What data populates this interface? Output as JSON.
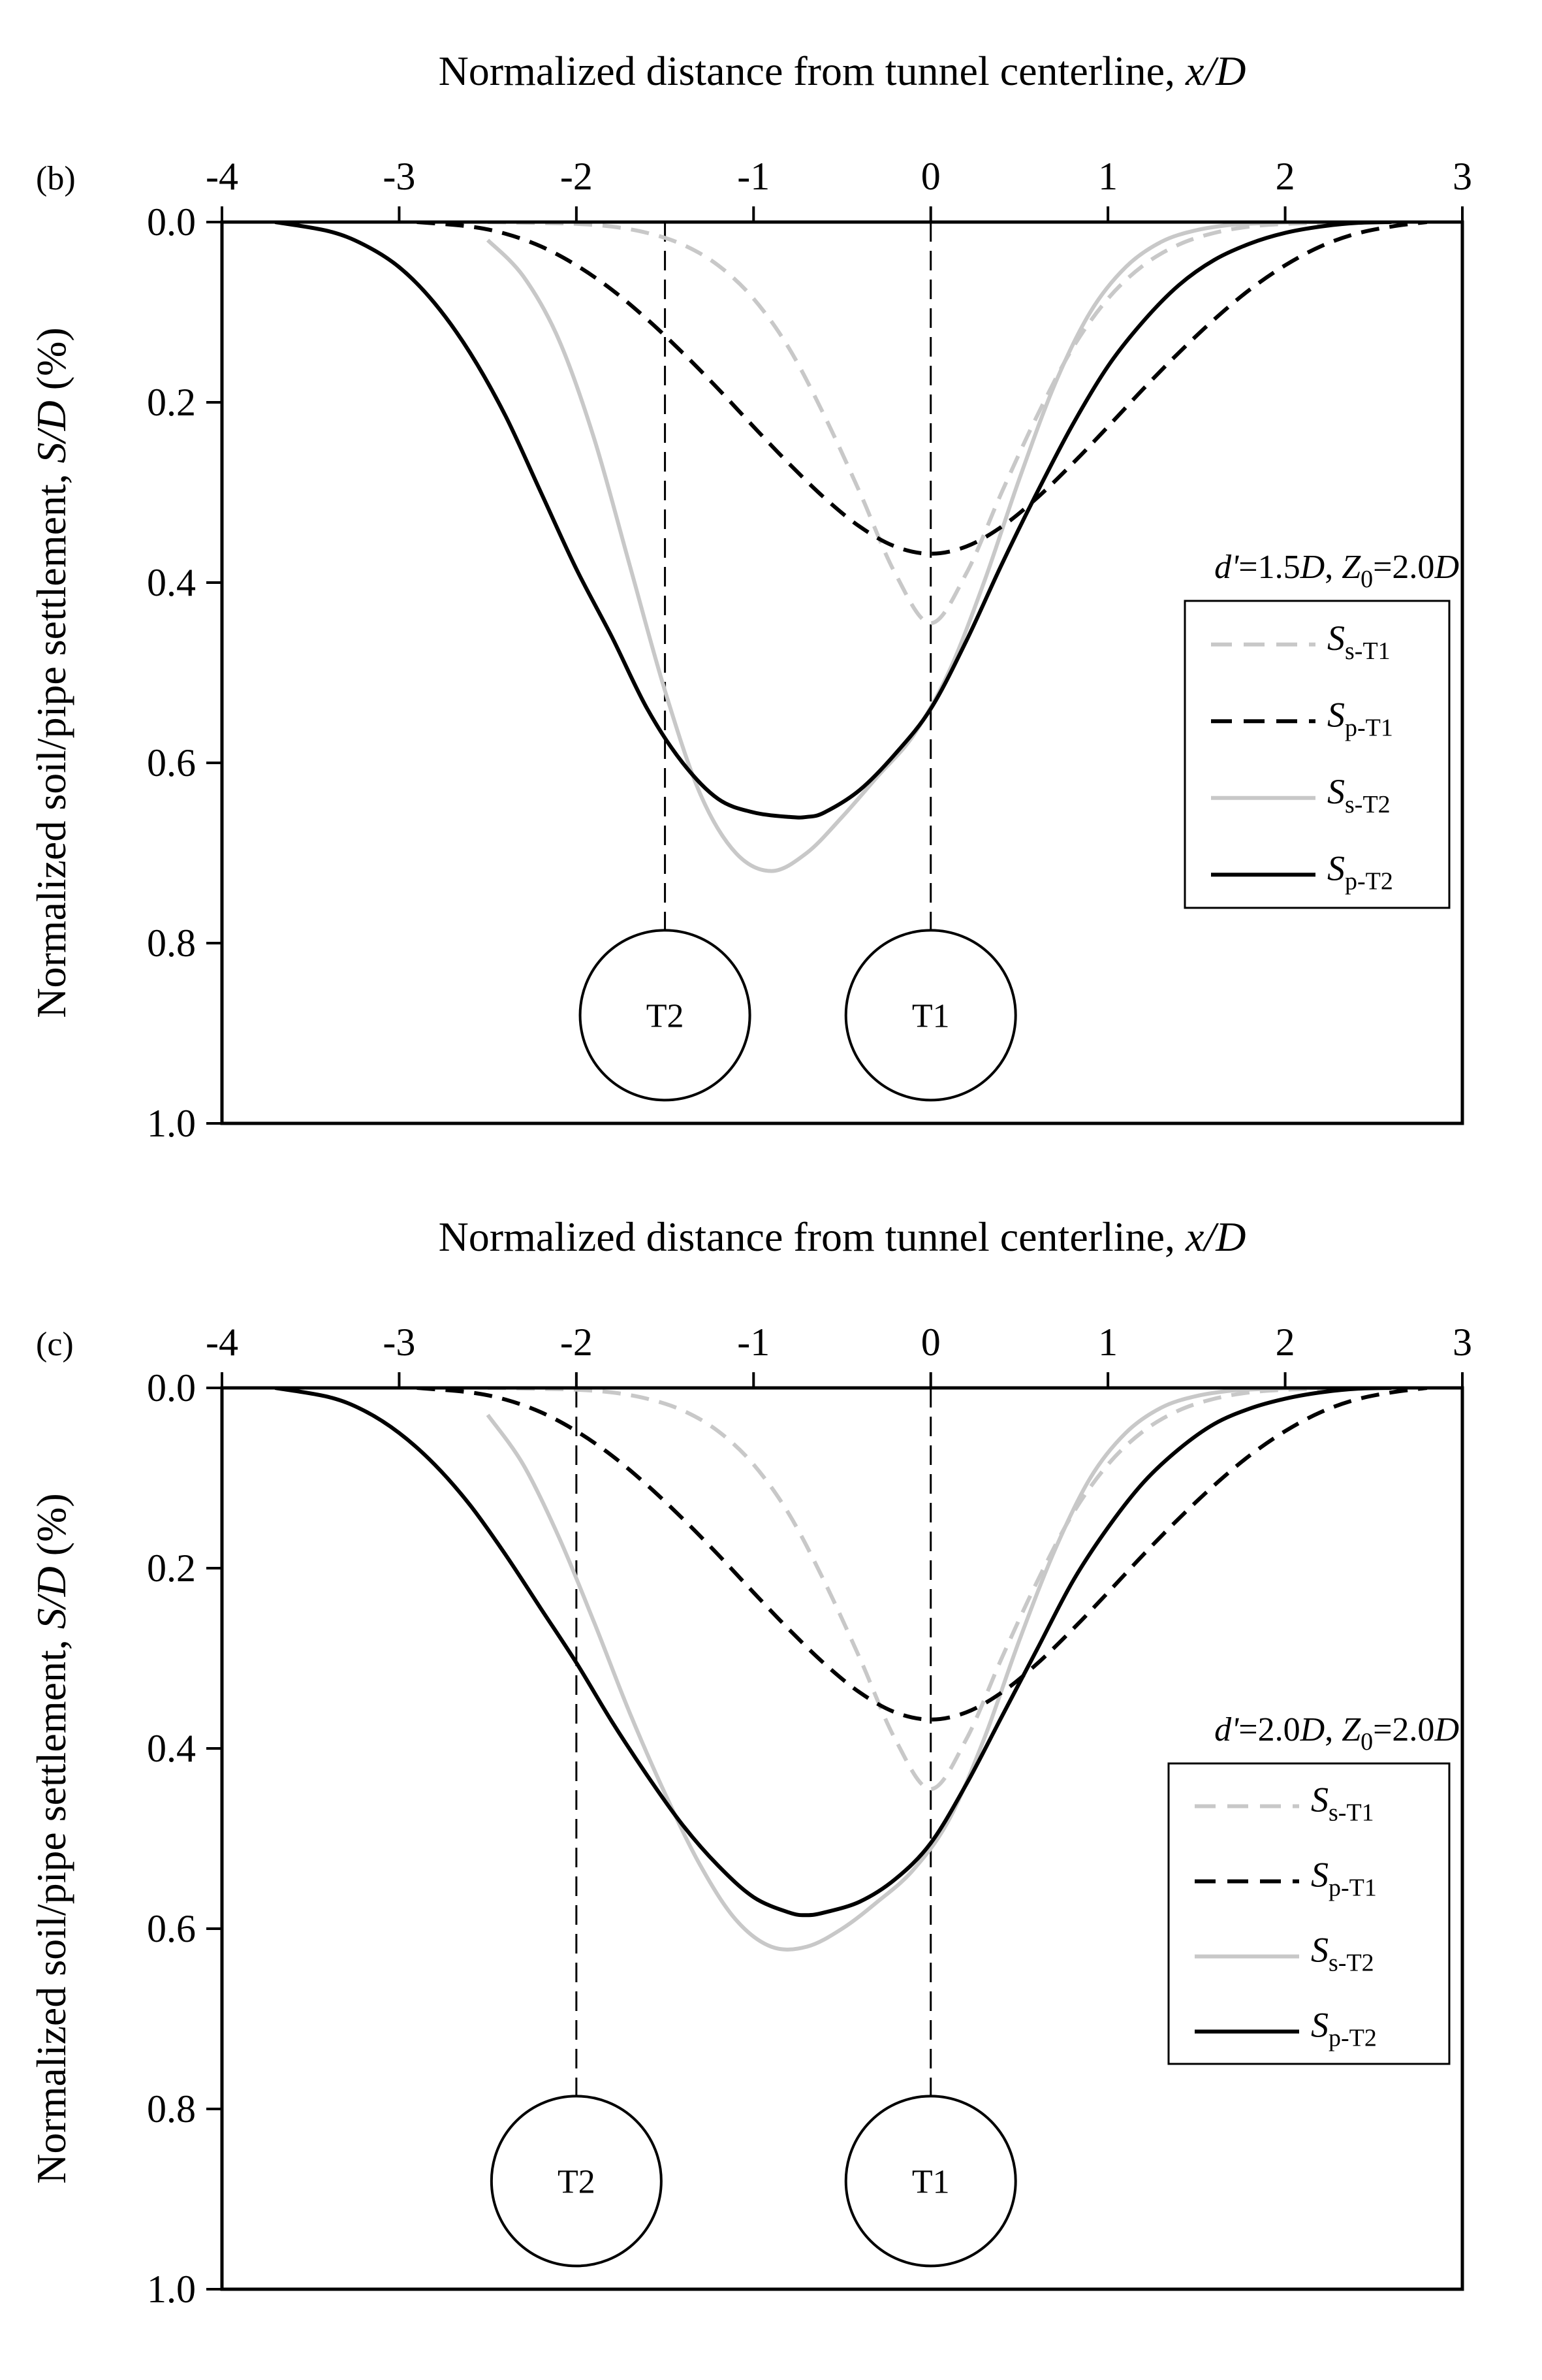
{
  "figure": {
    "series_styles": {
      "Ss-T1": {
        "color": "#c8c8c8",
        "dash": true
      },
      "Sp-T1": {
        "color": "#000000",
        "dash": true
      },
      "Ss-T2": {
        "color": "#c8c8c8",
        "dash": false
      },
      "Sp-T2": {
        "color": "#000000",
        "dash": false
      }
    },
    "legend_entries": [
      {
        "key": "Ss-T1",
        "main": "S",
        "sub": "s-T1"
      },
      {
        "key": "Sp-T1",
        "main": "S",
        "sub": "p-T1"
      },
      {
        "key": "Ss-T2",
        "main": "S",
        "sub": "s-T2"
      },
      {
        "key": "Sp-T2",
        "main": "S",
        "sub": "p-T2"
      }
    ]
  },
  "chart_data": [
    {
      "type": "line",
      "panel_label": "(b)",
      "xlabel_prefix": "Normalized distance from tunnel centerline, ",
      "xlabel_italic": "x/D",
      "ylabel_prefix": "Normalized soil/pipe settlement, ",
      "ylabel_italic": "S/D",
      "ylabel_suffix": " (%)",
      "xlim": [
        -4,
        3
      ],
      "ylim": [
        0,
        1
      ],
      "y_inverted": true,
      "x_axis_position": "top",
      "x_ticks": [
        -4,
        -3,
        -2,
        -1,
        0,
        1,
        2,
        3
      ],
      "x_tick_labels": [
        "-4",
        "-3",
        "-2",
        "-1",
        "0",
        "1",
        "2",
        "3"
      ],
      "y_ticks": [
        0.0,
        0.2,
        0.4,
        0.6,
        0.8,
        1.0
      ],
      "y_tick_labels": [
        "0.0",
        "0.2",
        "0.4",
        "0.6",
        "0.8",
        "1.0"
      ],
      "annotation": {
        "p1": "d'",
        "v1": "=1.5",
        "u1": "D",
        "sep": ", ",
        "p2": "Z",
        "p2sub": "0",
        "v2": "=2.0",
        "u2": "D"
      },
      "tunnels": [
        {
          "label": "T2",
          "x": -1.5,
          "y": 0.88
        },
        {
          "label": "T1",
          "x": 0.0,
          "y": 0.88
        }
      ],
      "series": [
        {
          "name": "Ss-T1",
          "x": [
            -2.5,
            -2.2,
            -2.0,
            -1.8,
            -1.6,
            -1.4,
            -1.2,
            -1.0,
            -0.8,
            -0.6,
            -0.4,
            -0.2,
            0.0,
            0.2,
            0.4,
            0.6,
            0.8,
            1.0,
            1.2,
            1.4,
            1.6,
            1.8,
            2.0,
            2.2,
            2.4,
            2.5
          ],
          "y": [
            0.0,
            0.001,
            0.002,
            0.005,
            0.012,
            0.025,
            0.048,
            0.085,
            0.14,
            0.215,
            0.3,
            0.39,
            0.445,
            0.39,
            0.3,
            0.215,
            0.14,
            0.085,
            0.048,
            0.025,
            0.012,
            0.005,
            0.002,
            0.001,
            0.0,
            0.0
          ]
        },
        {
          "name": "Sp-T1",
          "x": [
            -2.9,
            -2.6,
            -2.4,
            -2.2,
            -2.0,
            -1.8,
            -1.6,
            -1.4,
            -1.2,
            -1.0,
            -0.8,
            -0.6,
            -0.4,
            -0.2,
            0.0,
            0.2,
            0.4,
            0.6,
            0.8,
            1.0,
            1.2,
            1.4,
            1.6,
            1.8,
            2.0,
            2.2,
            2.4,
            2.6,
            2.8
          ],
          "y": [
            0.0,
            0.005,
            0.013,
            0.027,
            0.048,
            0.075,
            0.108,
            0.145,
            0.185,
            0.227,
            0.268,
            0.306,
            0.338,
            0.36,
            0.368,
            0.36,
            0.338,
            0.306,
            0.268,
            0.227,
            0.185,
            0.145,
            0.108,
            0.075,
            0.048,
            0.027,
            0.013,
            0.005,
            0.0
          ]
        },
        {
          "name": "Ss-T2",
          "x": [
            -2.5,
            -2.3,
            -2.1,
            -1.9,
            -1.7,
            -1.5,
            -1.3,
            -1.1,
            -0.9,
            -0.7,
            -0.5,
            -0.3,
            -0.1,
            0.1,
            0.3,
            0.5,
            0.7,
            0.9,
            1.1,
            1.3,
            1.5,
            1.7,
            1.9,
            2.1,
            2.3,
            2.5
          ],
          "y": [
            0.02,
            0.06,
            0.13,
            0.24,
            0.38,
            0.52,
            0.635,
            0.7,
            0.72,
            0.7,
            0.66,
            0.615,
            0.57,
            0.5,
            0.4,
            0.285,
            0.18,
            0.1,
            0.05,
            0.022,
            0.009,
            0.003,
            0.001,
            0.0,
            0.0,
            0.0
          ]
        },
        {
          "name": "Sp-T2",
          "x": [
            -3.7,
            -3.4,
            -3.2,
            -3.0,
            -2.8,
            -2.6,
            -2.4,
            -2.2,
            -2.0,
            -1.8,
            -1.6,
            -1.4,
            -1.2,
            -1.0,
            -0.8,
            -0.7,
            -0.6,
            -0.4,
            -0.2,
            0.0,
            0.2,
            0.4,
            0.6,
            0.8,
            1.0,
            1.2,
            1.4,
            1.6,
            1.8,
            2.0,
            2.2,
            2.4,
            2.6
          ],
          "y": [
            0.0,
            0.01,
            0.025,
            0.05,
            0.09,
            0.145,
            0.215,
            0.3,
            0.385,
            0.46,
            0.54,
            0.6,
            0.64,
            0.655,
            0.66,
            0.66,
            0.655,
            0.63,
            0.59,
            0.54,
            0.465,
            0.38,
            0.3,
            0.225,
            0.16,
            0.11,
            0.07,
            0.042,
            0.024,
            0.012,
            0.005,
            0.001,
            0.0
          ]
        }
      ]
    },
    {
      "type": "line",
      "panel_label": "(c)",
      "xlabel_prefix": "Normalized distance from tunnel centerline, ",
      "xlabel_italic": "x/D",
      "ylabel_prefix": "Normalized soil/pipe settlement, ",
      "ylabel_italic": "S/D",
      "ylabel_suffix": " (%)",
      "xlim": [
        -4,
        3
      ],
      "ylim": [
        0,
        1
      ],
      "y_inverted": true,
      "x_axis_position": "top",
      "x_ticks": [
        -4,
        -3,
        -2,
        -1,
        0,
        1,
        2,
        3
      ],
      "x_tick_labels": [
        "-4",
        "-3",
        "-2",
        "-1",
        "0",
        "1",
        "2",
        "3"
      ],
      "y_ticks": [
        0.0,
        0.2,
        0.4,
        0.6,
        0.8,
        1.0
      ],
      "y_tick_labels": [
        "0.0",
        "0.2",
        "0.4",
        "0.6",
        "0.8",
        "1.0"
      ],
      "annotation": {
        "p1": "d'",
        "v1": "=2.0",
        "u1": "D",
        "sep": ", ",
        "p2": "Z",
        "p2sub": "0",
        "v2": "=2.0",
        "u2": "D"
      },
      "tunnels": [
        {
          "label": "T2",
          "x": -2.0,
          "y": 0.88
        },
        {
          "label": "T1",
          "x": 0.0,
          "y": 0.88
        }
      ],
      "series": [
        {
          "name": "Ss-T1",
          "x": [
            -2.5,
            -2.2,
            -2.0,
            -1.8,
            -1.6,
            -1.4,
            -1.2,
            -1.0,
            -0.8,
            -0.6,
            -0.4,
            -0.2,
            0.0,
            0.2,
            0.4,
            0.6,
            0.8,
            1.0,
            1.2,
            1.4,
            1.6,
            1.8,
            2.0,
            2.2,
            2.4,
            2.5
          ],
          "y": [
            0.0,
            0.001,
            0.002,
            0.005,
            0.012,
            0.025,
            0.048,
            0.085,
            0.14,
            0.215,
            0.3,
            0.39,
            0.445,
            0.39,
            0.3,
            0.215,
            0.14,
            0.085,
            0.048,
            0.025,
            0.012,
            0.005,
            0.002,
            0.001,
            0.0,
            0.0
          ]
        },
        {
          "name": "Sp-T1",
          "x": [
            -2.9,
            -2.6,
            -2.4,
            -2.2,
            -2.0,
            -1.8,
            -1.6,
            -1.4,
            -1.2,
            -1.0,
            -0.8,
            -0.6,
            -0.4,
            -0.2,
            0.0,
            0.2,
            0.4,
            0.6,
            0.8,
            1.0,
            1.2,
            1.4,
            1.6,
            1.8,
            2.0,
            2.2,
            2.4,
            2.6,
            2.8
          ],
          "y": [
            0.0,
            0.005,
            0.013,
            0.027,
            0.048,
            0.075,
            0.108,
            0.145,
            0.185,
            0.227,
            0.268,
            0.306,
            0.338,
            0.36,
            0.368,
            0.36,
            0.338,
            0.306,
            0.268,
            0.227,
            0.185,
            0.145,
            0.108,
            0.075,
            0.048,
            0.027,
            0.013,
            0.005,
            0.0
          ]
        },
        {
          "name": "Ss-T2",
          "x": [
            -2.5,
            -2.3,
            -2.1,
            -1.9,
            -1.7,
            -1.5,
            -1.3,
            -1.1,
            -0.9,
            -0.7,
            -0.5,
            -0.3,
            -0.1,
            0.1,
            0.3,
            0.5,
            0.7,
            0.9,
            1.1,
            1.3,
            1.5,
            1.7,
            1.9,
            2.1,
            2.3,
            2.5
          ],
          "y": [
            0.03,
            0.085,
            0.165,
            0.26,
            0.36,
            0.45,
            0.53,
            0.59,
            0.62,
            0.62,
            0.6,
            0.57,
            0.535,
            0.48,
            0.39,
            0.28,
            0.18,
            0.1,
            0.05,
            0.022,
            0.009,
            0.003,
            0.001,
            0.0,
            0.0,
            0.0
          ]
        },
        {
          "name": "Sp-T2",
          "x": [
            -3.7,
            -3.4,
            -3.2,
            -3.0,
            -2.8,
            -2.6,
            -2.4,
            -2.2,
            -2.0,
            -1.8,
            -1.6,
            -1.4,
            -1.2,
            -1.0,
            -0.8,
            -0.7,
            -0.6,
            -0.4,
            -0.2,
            0.0,
            0.2,
            0.4,
            0.6,
            0.8,
            1.0,
            1.2,
            1.4,
            1.6,
            1.8,
            2.0,
            2.2,
            2.4,
            2.6
          ],
          "y": [
            0.0,
            0.01,
            0.025,
            0.05,
            0.085,
            0.13,
            0.185,
            0.245,
            0.305,
            0.37,
            0.43,
            0.485,
            0.53,
            0.565,
            0.582,
            0.585,
            0.582,
            0.57,
            0.545,
            0.505,
            0.44,
            0.365,
            0.29,
            0.215,
            0.155,
            0.105,
            0.068,
            0.04,
            0.023,
            0.012,
            0.005,
            0.001,
            0.0
          ]
        }
      ]
    }
  ]
}
